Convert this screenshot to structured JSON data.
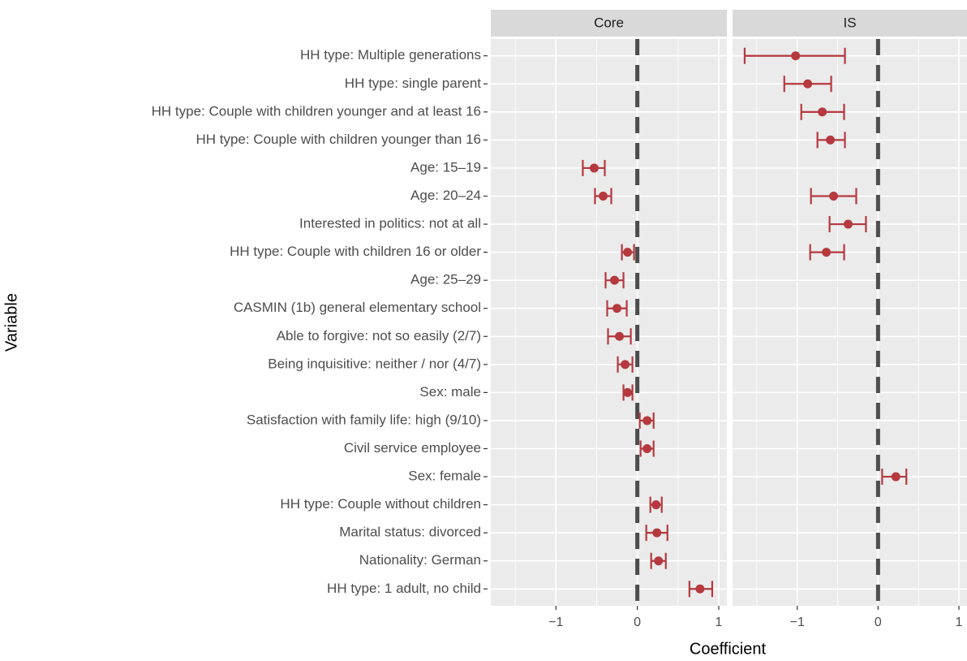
{
  "chart_data": {
    "type": "dot-whisker",
    "xlabel": "Coefficient",
    "ylabel": "Variable",
    "categories": [
      "HH type: Multiple generations",
      "HH type: single parent",
      "HH type: Couple with children younger and at least 16",
      "HH type: Couple with children younger than 16",
      "Age: 15–19",
      "Age: 20–24",
      "Interested in politics: not at all",
      "HH type: Couple with children 16 or older",
      "Age: 25–29",
      "CASMIN (1b) general elementary school",
      "Able to forgive: not so easily (2/7)",
      "Being inquisitive: neither / nor (4/7)",
      "Sex: male",
      "Satisfaction with family life: high (9/10)",
      "Civil service employee",
      "Sex: female",
      "HH type: Couple without children",
      "Marital status: divorced",
      "Nationality: German",
      "HH type: 1 adult, no child"
    ],
    "facets": [
      {
        "title": "Core",
        "values": [
          null,
          null,
          null,
          null,
          -0.53,
          -0.42,
          null,
          -0.12,
          -0.28,
          -0.25,
          -0.22,
          -0.15,
          -0.12,
          0.12,
          0.12,
          null,
          0.23,
          0.24,
          0.26,
          0.77
        ],
        "lower": [
          null,
          null,
          null,
          null,
          -0.67,
          -0.52,
          null,
          -0.19,
          -0.39,
          -0.37,
          -0.36,
          -0.24,
          -0.17,
          0.03,
          0.04,
          null,
          0.16,
          0.11,
          0.17,
          0.64
        ],
        "upper": [
          null,
          null,
          null,
          null,
          -0.4,
          -0.32,
          null,
          -0.04,
          -0.17,
          -0.13,
          -0.08,
          -0.06,
          -0.06,
          0.2,
          0.2,
          null,
          0.3,
          0.37,
          0.35,
          0.92
        ]
      },
      {
        "title": "IS",
        "values": [
          -1.02,
          -0.87,
          -0.69,
          -0.59,
          null,
          -0.55,
          -0.37,
          -0.64,
          null,
          null,
          null,
          null,
          null,
          null,
          null,
          0.22,
          null,
          null,
          null,
          null
        ],
        "lower": [
          -1.65,
          -1.16,
          -0.95,
          -0.75,
          null,
          -0.83,
          -0.6,
          -0.84,
          null,
          null,
          null,
          null,
          null,
          null,
          null,
          0.05,
          null,
          null,
          null,
          null
        ],
        "upper": [
          -0.41,
          -0.58,
          -0.42,
          -0.41,
          null,
          -0.27,
          -0.15,
          -0.42,
          null,
          null,
          null,
          null,
          null,
          null,
          null,
          0.35,
          null,
          null,
          null,
          null
        ]
      }
    ],
    "color": "#b5393f",
    "xlim": [
      -1.8,
      1.1
    ],
    "xticks": [
      {
        "value": -1,
        "label": "−1"
      },
      0,
      1
    ],
    "minor_xticks": [
      -1.5,
      -0.5,
      0.5
    ],
    "refline": 0,
    "grid": true
  }
}
